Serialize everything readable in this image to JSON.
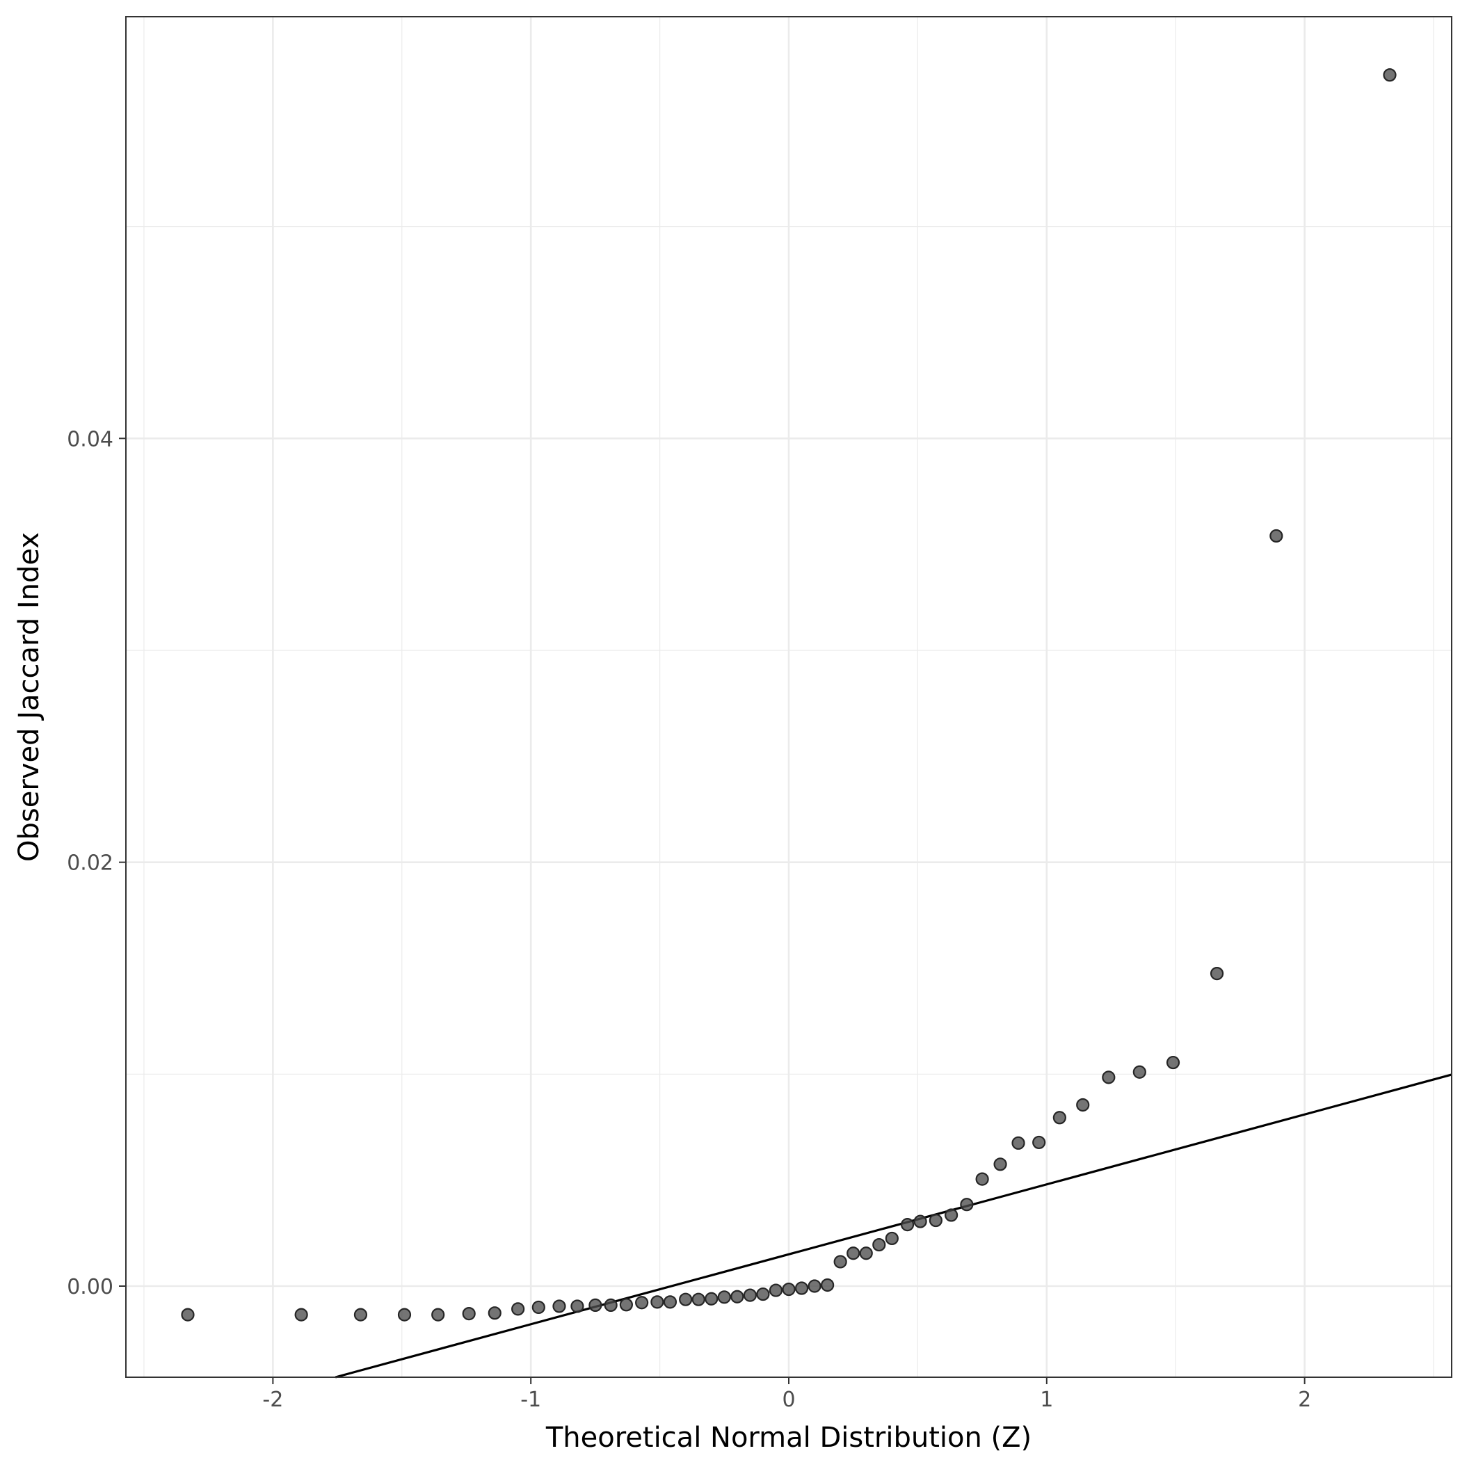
{
  "chart_data": {
    "type": "scatter",
    "title": "",
    "xlabel": "Theoretical Normal Distribution (Z)",
    "ylabel": "Observed Jaccard Index",
    "xlim": [
      -2.57,
      2.57
    ],
    "ylim": [
      -0.0043,
      0.0599
    ],
    "x_ticks": [
      -2,
      -1,
      0,
      1,
      2
    ],
    "x_tick_labels": [
      "-2",
      "-1",
      "0",
      "1",
      "2"
    ],
    "y_ticks": [
      0.0,
      0.02,
      0.04
    ],
    "y_tick_labels": [
      "0.00",
      "0.02",
      "0.04"
    ],
    "grid": true,
    "legend": "none",
    "point_color": "#4d4d4d",
    "line_color": "#000000",
    "reference_line": {
      "intercept": 0.0015,
      "slope": 0.0033
    },
    "points": [
      {
        "x": -2.33,
        "y": -0.00135
      },
      {
        "x": -1.89,
        "y": -0.00135
      },
      {
        "x": -1.66,
        "y": -0.00135
      },
      {
        "x": -1.49,
        "y": -0.00135
      },
      {
        "x": -1.36,
        "y": -0.00135
      },
      {
        "x": -1.24,
        "y": -0.0013
      },
      {
        "x": -1.14,
        "y": -0.00127
      },
      {
        "x": -1.05,
        "y": -0.00108
      },
      {
        "x": -0.97,
        "y": -0.001
      },
      {
        "x": -0.89,
        "y": -0.00095
      },
      {
        "x": -0.82,
        "y": -0.00095
      },
      {
        "x": -0.75,
        "y": -0.0009
      },
      {
        "x": -0.69,
        "y": -0.0009
      },
      {
        "x": -0.63,
        "y": -0.00088
      },
      {
        "x": -0.57,
        "y": -0.00078
      },
      {
        "x": -0.51,
        "y": -0.00075
      },
      {
        "x": -0.46,
        "y": -0.00075
      },
      {
        "x": -0.4,
        "y": -0.00063
      },
      {
        "x": -0.35,
        "y": -0.00063
      },
      {
        "x": -0.3,
        "y": -0.0006
      },
      {
        "x": -0.25,
        "y": -0.00052
      },
      {
        "x": -0.2,
        "y": -0.0005
      },
      {
        "x": -0.15,
        "y": -0.00043
      },
      {
        "x": -0.1,
        "y": -0.00038
      },
      {
        "x": -0.05,
        "y": -0.0002
      },
      {
        "x": 0.0,
        "y": -0.00015
      },
      {
        "x": 0.05,
        "y": -0.0001
      },
      {
        "x": 0.1,
        "y": 0.0
      },
      {
        "x": 0.15,
        "y": 5e-05
      },
      {
        "x": 0.2,
        "y": 0.00115
      },
      {
        "x": 0.25,
        "y": 0.00155
      },
      {
        "x": 0.3,
        "y": 0.00155
      },
      {
        "x": 0.35,
        "y": 0.00195
      },
      {
        "x": 0.4,
        "y": 0.00225
      },
      {
        "x": 0.46,
        "y": 0.0029
      },
      {
        "x": 0.51,
        "y": 0.00305
      },
      {
        "x": 0.57,
        "y": 0.0031
      },
      {
        "x": 0.63,
        "y": 0.00335
      },
      {
        "x": 0.69,
        "y": 0.00385
      },
      {
        "x": 0.75,
        "y": 0.00505
      },
      {
        "x": 0.82,
        "y": 0.00575
      },
      {
        "x": 0.89,
        "y": 0.00675
      },
      {
        "x": 0.97,
        "y": 0.00678
      },
      {
        "x": 1.05,
        "y": 0.00795
      },
      {
        "x": 1.14,
        "y": 0.00855
      },
      {
        "x": 1.24,
        "y": 0.00985
      },
      {
        "x": 1.36,
        "y": 0.0101
      },
      {
        "x": 1.49,
        "y": 0.01055
      },
      {
        "x": 1.66,
        "y": 0.01475
      },
      {
        "x": 1.89,
        "y": 0.0354
      },
      {
        "x": 2.33,
        "y": 0.05715
      }
    ]
  }
}
